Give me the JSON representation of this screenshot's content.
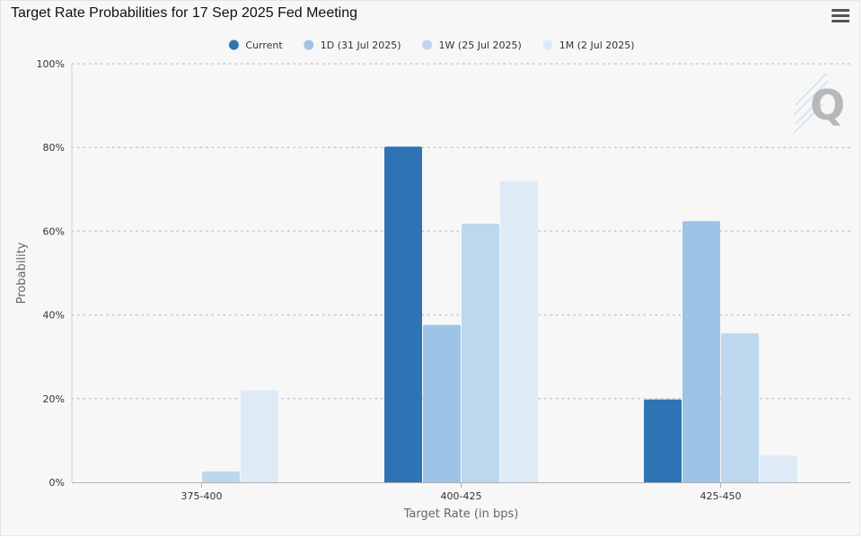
{
  "header": {
    "title": "Target Rate Probabilities for 17 Sep 2025 Fed Meeting",
    "menu_icon": "hamburger-menu-icon"
  },
  "watermark_icon": "cme-q-logo-icon",
  "chart_data": {
    "type": "bar",
    "title": "Target Rate Probabilities for 17 Sep 2025 Fed Meeting",
    "xlabel": "Target Rate (in bps)",
    "ylabel": "Probability",
    "categories": [
      "375-400",
      "400-425",
      "425-450"
    ],
    "y_ticks": [
      "0%",
      "20%",
      "40%",
      "60%",
      "80%",
      "100%"
    ],
    "ylim": [
      0,
      100
    ],
    "grid": true,
    "legend_position": "top-center",
    "series": [
      {
        "name": "Current",
        "color": "#2e74b5",
        "values": [
          0,
          80.2,
          19.8
        ]
      },
      {
        "name": "1D (31 Jul 2025)",
        "color": "#9dc3e6",
        "values": [
          0,
          37.6,
          62.4
        ]
      },
      {
        "name": "1W (25 Jul 2025)",
        "color": "#bdd7ee",
        "values": [
          2.6,
          61.8,
          35.6
        ]
      },
      {
        "name": "1M (2 Jul 2025)",
        "color": "#deebf7",
        "values": [
          22.0,
          72.0,
          6.4
        ]
      }
    ]
  }
}
